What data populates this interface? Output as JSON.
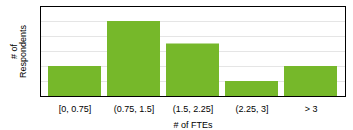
{
  "chart_data": {
    "type": "bar",
    "categories": [
      "[0, 0.75]",
      "(0.75, 1.5]",
      "(1.5, 2.25]",
      "(2.25, 3]",
      "> 3"
    ],
    "values": [
      2,
      5,
      3.5,
      1,
      2
    ],
    "color": "#76b82a",
    "xlabel": "# of FTEs",
    "ylabel": "# of\nRespondents",
    "ylim": [
      0,
      6
    ],
    "yticks": [
      1,
      2,
      3,
      4,
      5
    ],
    "grid": true,
    "tick_labels": "x"
  }
}
